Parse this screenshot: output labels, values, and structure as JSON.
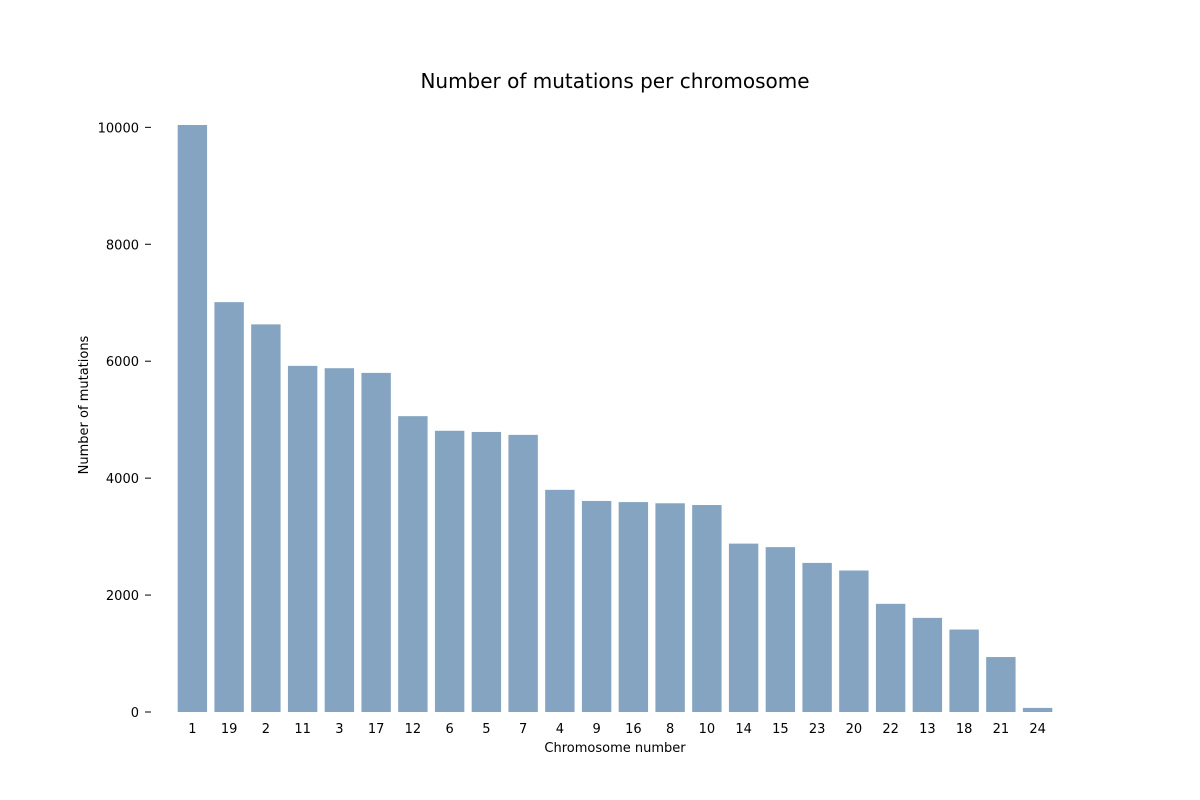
{
  "chart_data": {
    "type": "bar",
    "title": "Number of mutations per chromosome",
    "xlabel": "Chromosome number",
    "ylabel": "Number of mutations",
    "categories": [
      "1",
      "19",
      "2",
      "11",
      "3",
      "17",
      "12",
      "6",
      "5",
      "7",
      "4",
      "9",
      "16",
      "8",
      "10",
      "14",
      "15",
      "23",
      "20",
      "22",
      "13",
      "18",
      "21",
      "24"
    ],
    "values": [
      10040,
      7010,
      6630,
      5920,
      5880,
      5800,
      5060,
      4810,
      4790,
      4740,
      3800,
      3610,
      3590,
      3570,
      3540,
      2880,
      2820,
      2550,
      2420,
      1850,
      1610,
      1410,
      940,
      70
    ],
    "yticks": [
      0,
      2000,
      4000,
      6000,
      8000,
      10000
    ],
    "ylim": [
      0,
      10040
    ],
    "grid": false,
    "bar_color": "#84a4c1"
  }
}
